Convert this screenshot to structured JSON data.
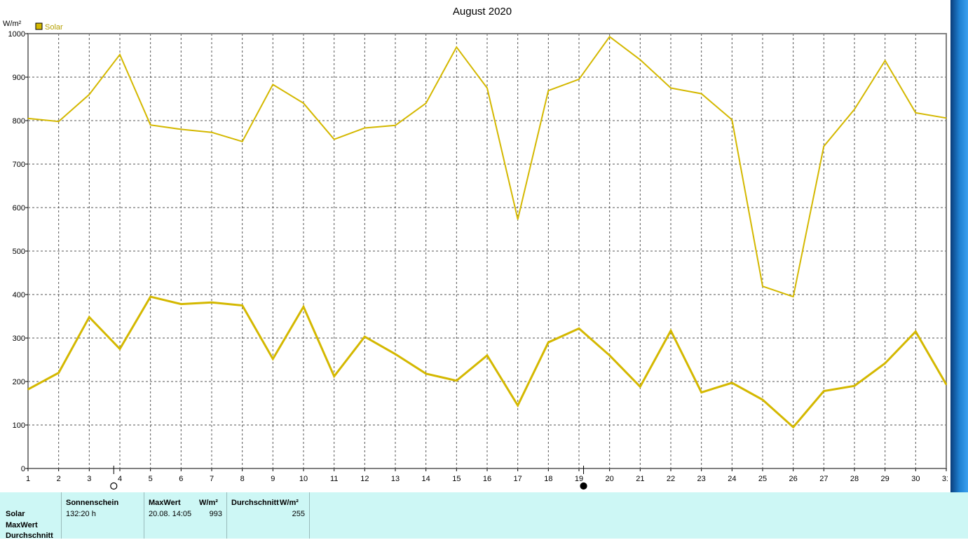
{
  "chart_data": {
    "type": "line",
    "title": "August 2020",
    "ylabel": "W/m²",
    "xlabel": "",
    "x": [
      1,
      2,
      3,
      4,
      5,
      6,
      7,
      8,
      9,
      10,
      11,
      12,
      13,
      14,
      15,
      16,
      17,
      18,
      19,
      20,
      21,
      22,
      23,
      24,
      25,
      26,
      27,
      28,
      29,
      30,
      31
    ],
    "ylim": [
      0,
      1000
    ],
    "yticks": [
      0,
      100,
      200,
      300,
      400,
      500,
      600,
      700,
      800,
      900,
      1000
    ],
    "grid": true,
    "legend": "top-left",
    "legend_label": "Solar",
    "series": [
      {
        "name": "Solar",
        "role": "max",
        "color": "#d4b800",
        "values": [
          805,
          798,
          860,
          952,
          790,
          780,
          773,
          752,
          883,
          840,
          757,
          783,
          789,
          840,
          969,
          875,
          573,
          869,
          895,
          993,
          940,
          875,
          862,
          802,
          419,
          395,
          741,
          826,
          938,
          818,
          806
        ]
      },
      {
        "name": "Solar",
        "role": "average",
        "color": "#d4b800",
        "values": [
          182,
          220,
          348,
          275,
          395,
          378,
          382,
          375,
          252,
          372,
          212,
          303,
          263,
          218,
          202,
          260,
          145,
          290,
          322,
          260,
          188,
          317,
          175,
          197,
          158,
          95,
          178,
          190,
          242,
          315,
          193
        ]
      }
    ],
    "moon_markers": [
      {
        "day": 3.8,
        "phase": "full-moon-icon"
      },
      {
        "day": 19.15,
        "phase": "new-moon-icon"
      }
    ]
  },
  "table": {
    "row_labels": [
      "Solar",
      "MaxWert",
      "Durchschnitt"
    ],
    "sonnenschein": {
      "header": "Sonnenschein",
      "value": "132:20 h"
    },
    "maxwert": {
      "header": "MaxWert",
      "unit": "W/m²",
      "date": "20.08.  14:05",
      "value": "993"
    },
    "durchschnitt": {
      "header": "Durchschnitt",
      "unit": "W/m²",
      "value": "255"
    }
  }
}
